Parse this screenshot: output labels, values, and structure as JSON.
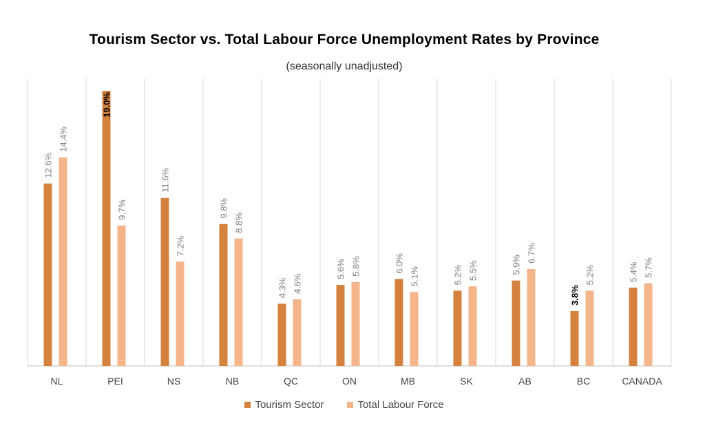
{
  "chart_data": {
    "type": "bar",
    "title": "Tourism Sector vs. Total Labour Force Unemployment Rates by Province",
    "subtitle": "(seasonally unadjusted)",
    "categories": [
      "NL",
      "PEI",
      "NS",
      "NB",
      "QC",
      "ON",
      "MB",
      "SK",
      "AB",
      "BC",
      "CANADA"
    ],
    "series": [
      {
        "name": "Tourism Sector",
        "color": "#d4823e",
        "values": [
          12.6,
          19.0,
          11.6,
          9.8,
          4.3,
          5.6,
          6.0,
          5.2,
          5.9,
          3.8,
          5.4
        ],
        "labels": [
          "12.6%",
          "19.0%",
          "11.6%",
          "9.8%",
          "4.3%",
          "5.6%",
          "6.0%",
          "5.2%",
          "5.9%",
          "3.8%",
          "5.4%"
        ]
      },
      {
        "name": "Total Labour Force",
        "color": "#f4b58a",
        "values": [
          14.4,
          9.7,
          7.2,
          8.8,
          4.6,
          5.8,
          5.1,
          5.5,
          6.7,
          5.2,
          5.7
        ],
        "labels": [
          "14.4%",
          "9.7%",
          "7.2%",
          "8.8%",
          "4.6%",
          "5.8%",
          "5.1%",
          "5.5%",
          "6.7%",
          "5.2%",
          "5.7%"
        ]
      }
    ],
    "highlighted_labels": [
      "19.0%",
      "3.8%"
    ],
    "ylim": [
      0,
      19.0
    ],
    "grid": "vertical category separators",
    "legend": "bottom-center"
  }
}
